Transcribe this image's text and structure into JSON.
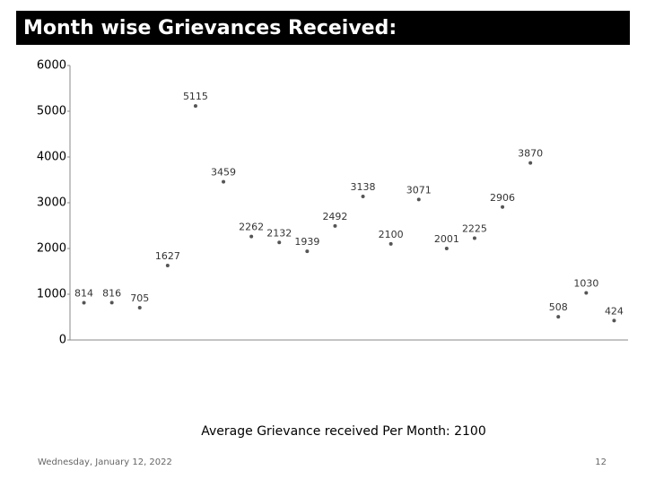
{
  "slide": {
    "title": "Month wise Grievances Received:",
    "date": "Wednesday, January 12, 2022",
    "page_number": "12"
  },
  "chart_data": {
    "type": "scatter",
    "categories": [
      null,
      null,
      null,
      null,
      null,
      null,
      null,
      null,
      null,
      null,
      null,
      null,
      null,
      null,
      null,
      null,
      null,
      null,
      null,
      null
    ],
    "values": [
      814,
      816,
      705,
      1627,
      5115,
      3459,
      2262,
      2132,
      1939,
      2492,
      3138,
      2100,
      3071,
      2001,
      2225,
      2906,
      3870,
      508,
      1030,
      424
    ],
    "color": "#555555",
    "ylim": [
      0,
      6000
    ],
    "yticks": [
      0,
      1000,
      2000,
      3000,
      4000,
      5000,
      6000
    ],
    "annotation": "Average Grievance received Per Month: 2100"
  }
}
